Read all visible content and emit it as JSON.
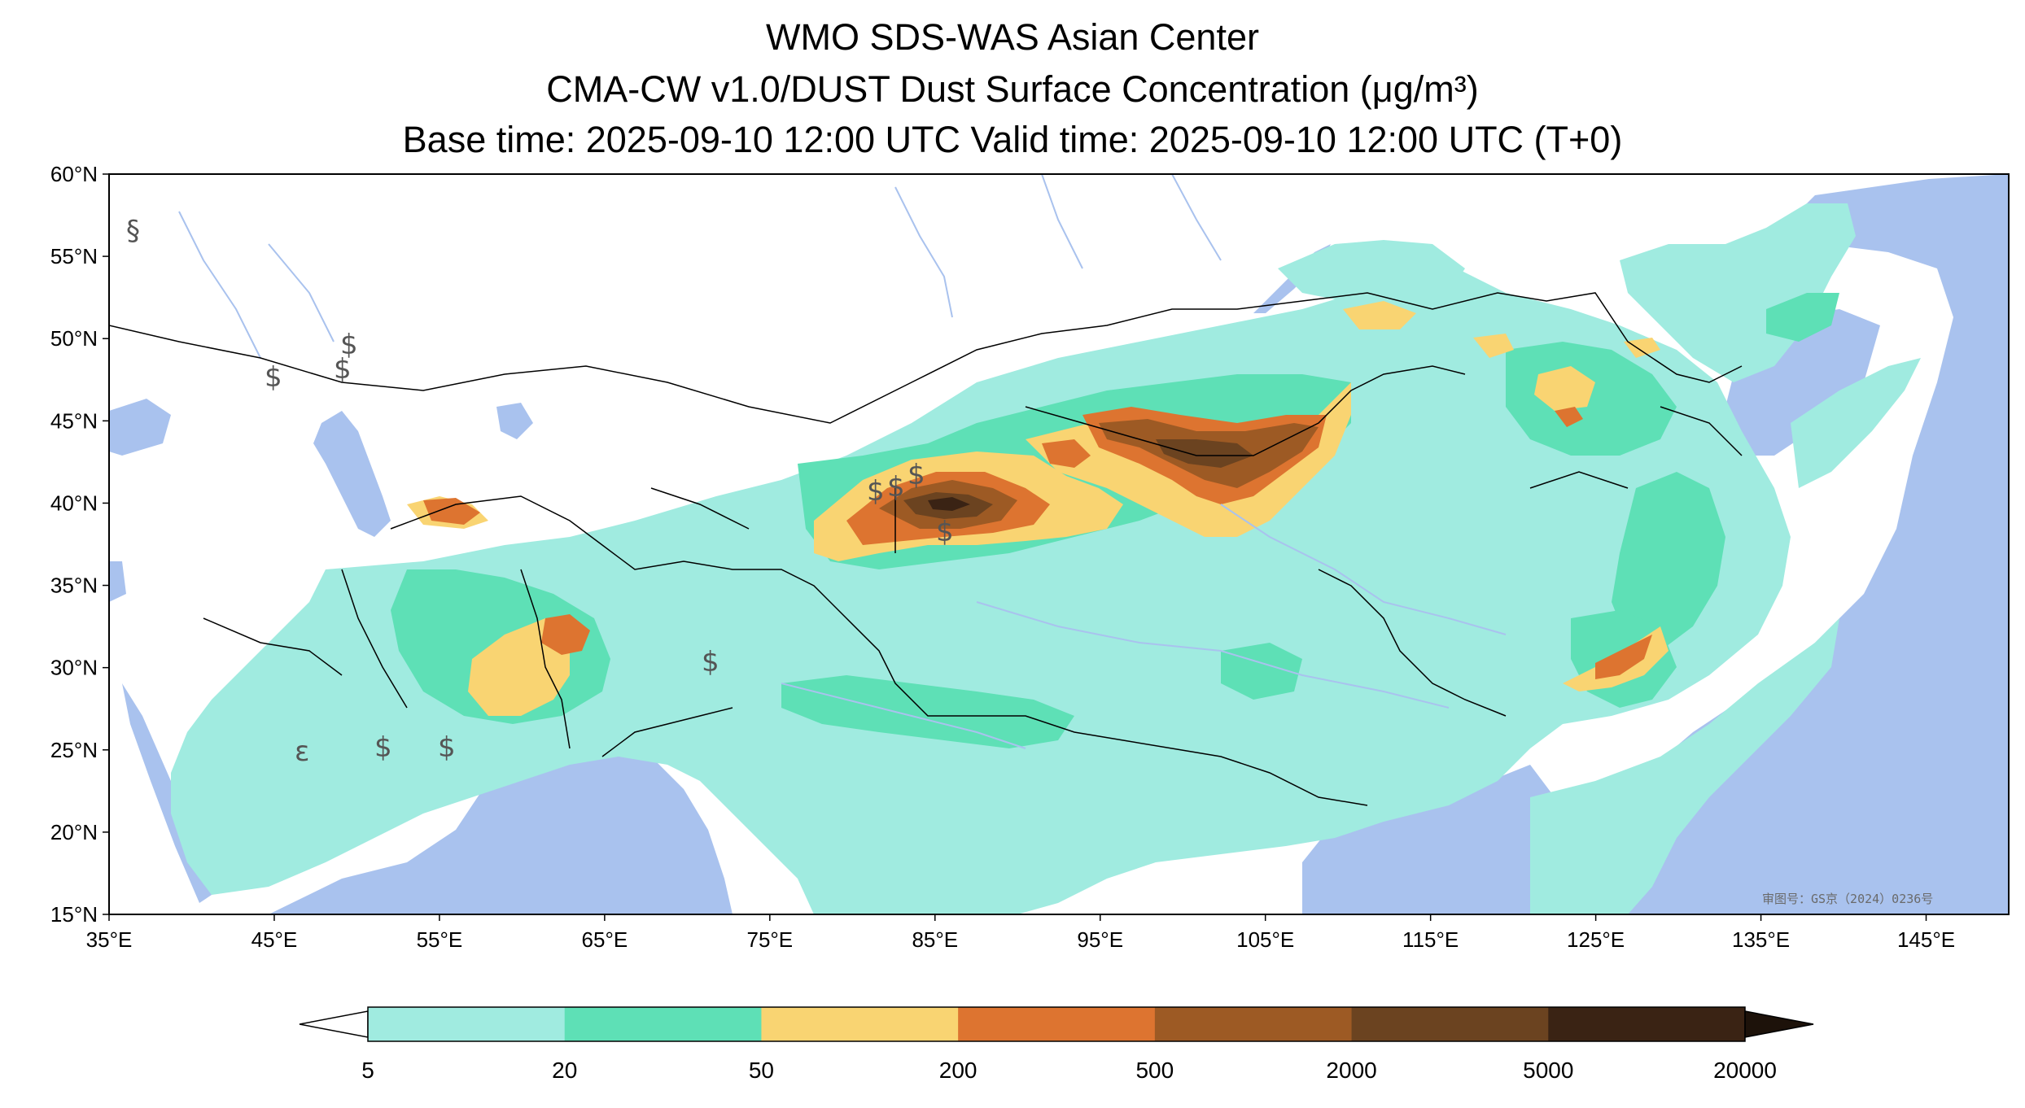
{
  "title": {
    "line1": "WMO SDS-WAS Asian Center",
    "line2": "CMA-CW v1.0/DUST Dust Surface Concentration (μg/m³)",
    "line3": "Base time: 2025-09-10 12:00 UTC Valid time: 2025-09-10 12:00 UTC (T+0)"
  },
  "map": {
    "lat_range": [
      15,
      60
    ],
    "lon_range": [
      35,
      150
    ],
    "lat_ticks": [
      "15°N",
      "20°N",
      "25°N",
      "30°N",
      "35°N",
      "40°N",
      "45°N",
      "50°N",
      "55°N",
      "60°N"
    ],
    "lon_ticks": [
      "35°E",
      "45°E",
      "55°E",
      "65°E",
      "75°E",
      "85°E",
      "95°E",
      "105°E",
      "115°E",
      "125°E",
      "135°E",
      "145°E"
    ],
    "approval_number": "审图号：GS京（2024）0236号",
    "colors": {
      "ocean": "#a9c2ee",
      "land": "#ffffff",
      "border": "#000000",
      "river": "#a9c2ee"
    }
  },
  "colorbar": {
    "labels": [
      "5",
      "20",
      "50",
      "200",
      "500",
      "2000",
      "5000",
      "20000"
    ],
    "colors": [
      "#a0ebe0",
      "#5ee0b6",
      "#f9d472",
      "#dd7430",
      "#9d5a24",
      "#6b4320",
      "#3a2314"
    ],
    "extend": "both"
  },
  "legend_colors": {
    "lt5": "#ffffff",
    "c5_20": "#a0ebe0",
    "c20_50": "#5ee0b6",
    "c50_200": "#f9d472",
    "c200_500": "#dd7430",
    "c500_2000": "#9d5a24",
    "c2000_5000": "#6b4320",
    "c5000_20000": "#3a2314"
  }
}
